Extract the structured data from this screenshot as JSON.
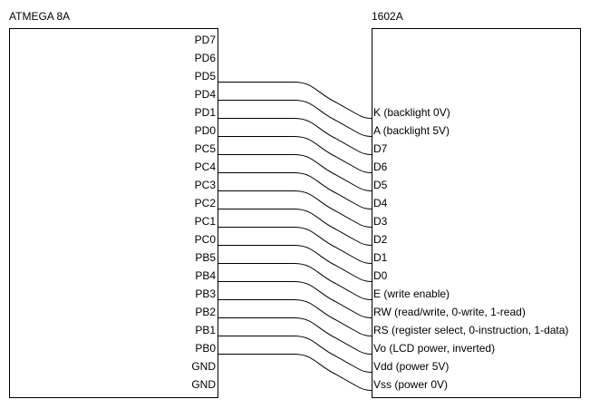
{
  "left_chip": {
    "title": "ATMEGA 8A",
    "pins": [
      "PD7",
      "PD6",
      "PD5",
      "PD4",
      "PD1",
      "PD0",
      "PC5",
      "PC4",
      "PC3",
      "PC2",
      "PC1",
      "PC0",
      "PB5",
      "PB4",
      "PB3",
      "PB2",
      "PB1",
      "PB0",
      "GND",
      "GND"
    ]
  },
  "right_chip": {
    "title": "1602A",
    "pins": [
      "K (backlight 0V)",
      "A (backlight 5V)",
      "D7",
      "D6",
      "D5",
      "D4",
      "D3",
      "D2",
      "D1",
      "D0",
      "E (write enable)",
      "RW (read/write, 0-write, 1-read)",
      "RS (register select, 0-instruction, 1-data)",
      "Vo (LCD power, inverted)",
      "Vdd (power 5V)",
      "Vss (power 0V)"
    ]
  },
  "connections": [
    {
      "from": "PD5",
      "to": "K (backlight 0V)"
    },
    {
      "from": "PD4",
      "to": "A (backlight 5V)"
    },
    {
      "from": "PD1",
      "to": "D7"
    },
    {
      "from": "PD0",
      "to": "D6"
    },
    {
      "from": "PC5",
      "to": "D5"
    },
    {
      "from": "PC4",
      "to": "D4"
    },
    {
      "from": "PC3",
      "to": "D3"
    },
    {
      "from": "PC2",
      "to": "D2"
    },
    {
      "from": "PC1",
      "to": "D1"
    },
    {
      "from": "PC0",
      "to": "D0"
    },
    {
      "from": "PB5",
      "to": "E (write enable)"
    },
    {
      "from": "PB4",
      "to": "RW (read/write, 0-write, 1-read)"
    },
    {
      "from": "PB3",
      "to": "RS (register select, 0-instruction, 1-data)"
    },
    {
      "from": "PB2",
      "to": "Vo (LCD power, inverted)"
    },
    {
      "from": "PB1",
      "to": "Vdd (power 5V)"
    },
    {
      "from": "PB0",
      "to": "Vss (power 0V)"
    }
  ]
}
